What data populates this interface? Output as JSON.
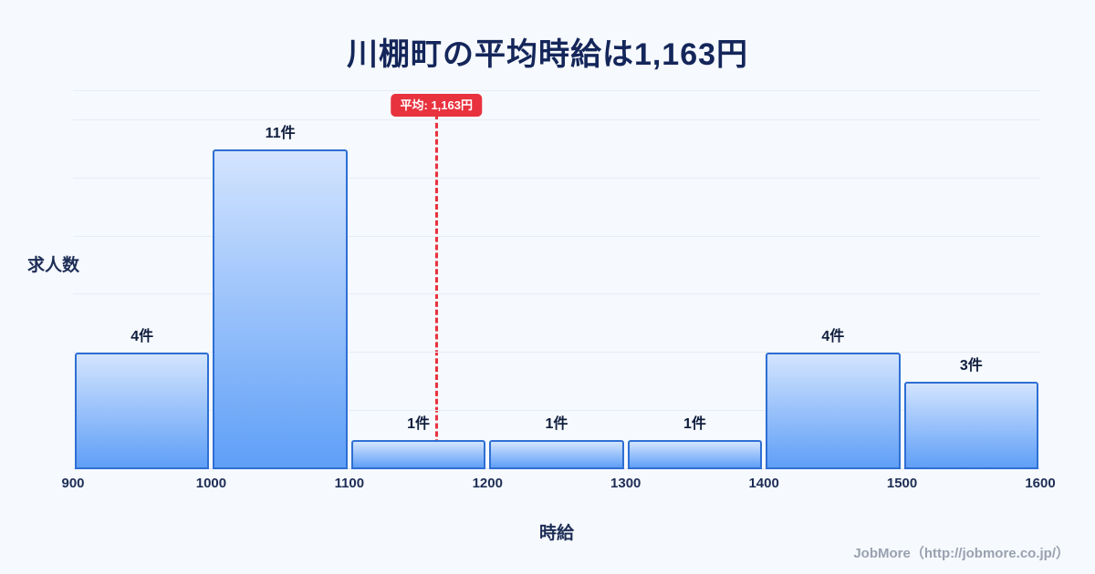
{
  "title": "川棚町の平均時給は1,163円",
  "footer": "JobMore（http://jobmore.co.jp/）",
  "colors": {
    "background": "#f6f9fd",
    "title": "#14265a",
    "bar_fill_top": "#d3e4fe",
    "bar_fill_bottom": "#5f9ff7",
    "bar_border": "#2e6fd4",
    "average_line": "#e8323e",
    "badge_bg": "#e8323e",
    "badge_text": "#ffffff",
    "grid": "#e7edf7",
    "axis_text": "#1d2d55",
    "footer_text": "#99a1b0"
  },
  "chart_data": {
    "type": "bar",
    "subtype": "histogram",
    "title": "川棚町の平均時給は1,163円",
    "xlabel": "時給",
    "ylabel": "求人数",
    "bin_edges": [
      900,
      1000,
      1100,
      1200,
      1300,
      1400,
      1500,
      1600
    ],
    "categories": [
      "900-1000",
      "1000-1100",
      "1100-1200",
      "1200-1300",
      "1300-1400",
      "1400-1500",
      "1500-1600"
    ],
    "values": [
      4,
      11,
      1,
      1,
      1,
      4,
      3
    ],
    "bar_labels": [
      "4件",
      "11件",
      "1件",
      "1件",
      "1件",
      "4件",
      "3件"
    ],
    "x_ticks": [
      "900",
      "1000",
      "1100",
      "1200",
      "1300",
      "1400",
      "1500",
      "1600"
    ],
    "ylim": [
      0,
      13
    ],
    "grid": "horizontal",
    "legend": "none",
    "average": {
      "value": 1163,
      "label": "平均: 1,163円"
    }
  }
}
